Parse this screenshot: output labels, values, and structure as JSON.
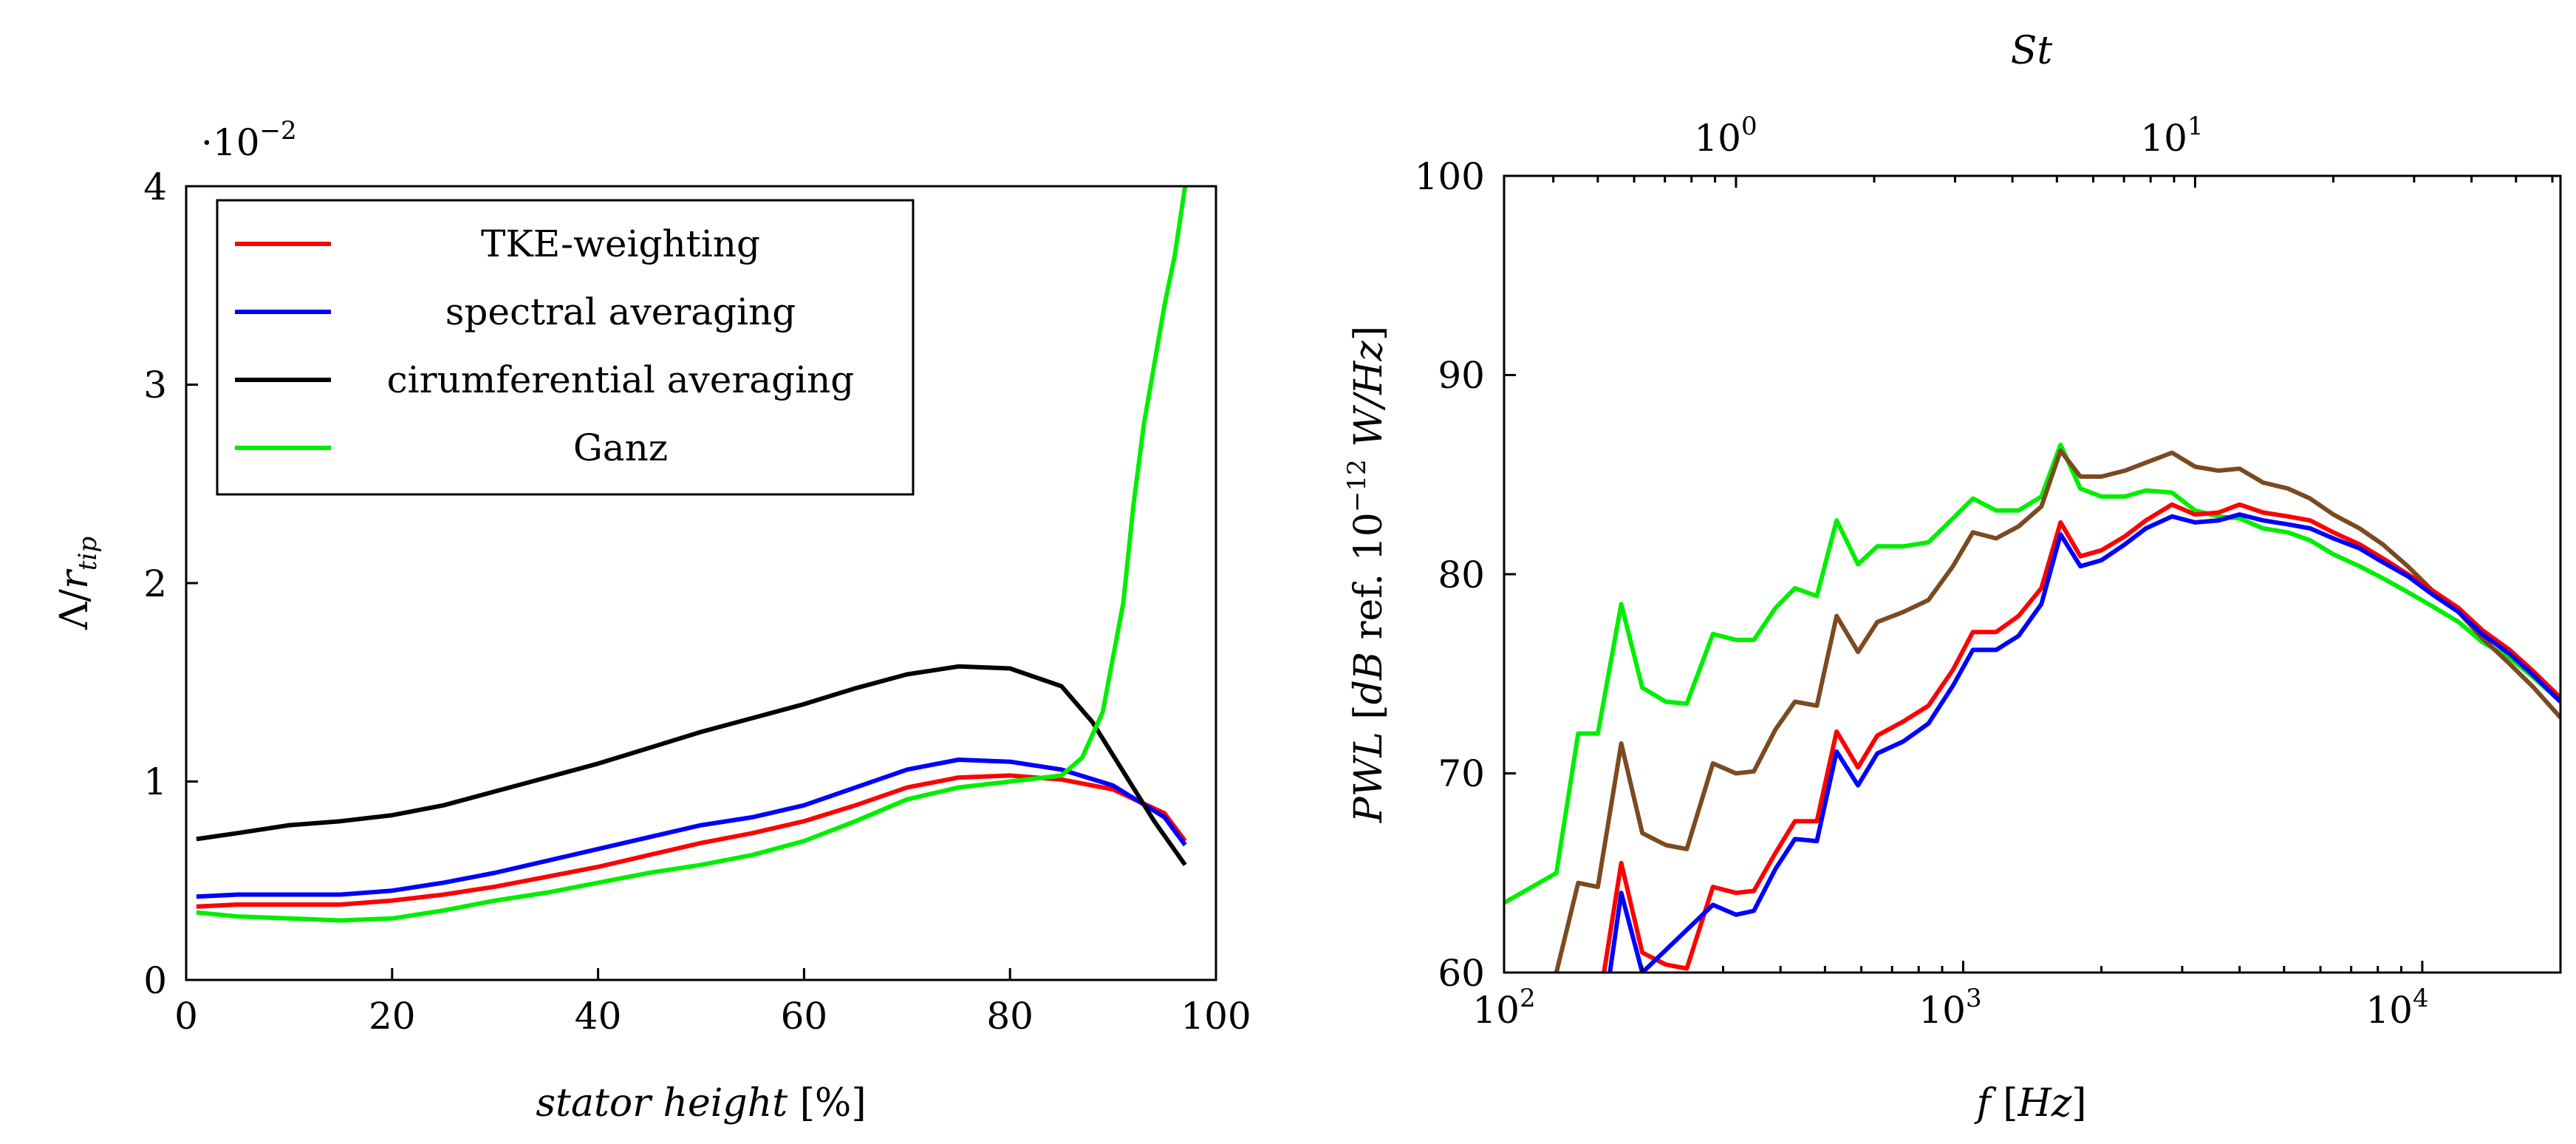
{
  "chart_data": [
    {
      "type": "line",
      "xlabel_parts": [
        "stator height",
        "[%]"
      ],
      "ylabel_parts": [
        "Λ/",
        "r",
        "tip"
      ],
      "y_multiplier": "·10",
      "y_multiplier_exp": "−2",
      "xlim": [
        0,
        100
      ],
      "ylim": [
        0,
        4
      ],
      "xticks": [
        0,
        20,
        40,
        60,
        80,
        100
      ],
      "xtick_labels": [
        "0",
        "20",
        "40",
        "60",
        "80",
        "100"
      ],
      "yticks": [
        0,
        1,
        2,
        3,
        4
      ],
      "ytick_labels": [
        "0",
        "1",
        "2",
        "3",
        "4"
      ],
      "grid": false,
      "legend_position": "top-left",
      "series": [
        {
          "name": "TKE-weighting",
          "color": "#ff0000",
          "x": [
            1,
            5,
            10,
            15,
            20,
            25,
            30,
            35,
            40,
            45,
            50,
            55,
            60,
            65,
            70,
            75,
            80,
            85,
            90,
            95,
            97
          ],
          "y": [
            0.37,
            0.38,
            0.38,
            0.38,
            0.4,
            0.43,
            0.47,
            0.52,
            0.57,
            0.63,
            0.69,
            0.74,
            0.8,
            0.88,
            0.97,
            1.02,
            1.03,
            1.01,
            0.96,
            0.84,
            0.7
          ]
        },
        {
          "name": "spectral averaging",
          "color": "#0000ff",
          "x": [
            1,
            5,
            10,
            15,
            20,
            25,
            30,
            35,
            40,
            45,
            50,
            55,
            60,
            65,
            70,
            75,
            80,
            85,
            90,
            95,
            97
          ],
          "y": [
            0.42,
            0.43,
            0.43,
            0.43,
            0.45,
            0.49,
            0.54,
            0.6,
            0.66,
            0.72,
            0.78,
            0.82,
            0.88,
            0.97,
            1.06,
            1.11,
            1.1,
            1.06,
            0.98,
            0.82,
            0.68
          ]
        },
        {
          "name": "cirumferential averaging",
          "color": "#000000",
          "x": [
            1,
            5,
            10,
            15,
            20,
            25,
            30,
            35,
            40,
            45,
            50,
            55,
            60,
            65,
            70,
            75,
            80,
            85,
            88,
            91,
            94,
            97
          ],
          "y": [
            0.71,
            0.74,
            0.78,
            0.8,
            0.83,
            0.88,
            0.95,
            1.02,
            1.09,
            1.17,
            1.25,
            1.32,
            1.39,
            1.47,
            1.54,
            1.58,
            1.57,
            1.48,
            1.3,
            1.05,
            0.8,
            0.58
          ]
        },
        {
          "name": "Ganz",
          "color": "#00ee00",
          "x": [
            1,
            5,
            10,
            15,
            20,
            25,
            30,
            35,
            40,
            45,
            50,
            55,
            60,
            65,
            70,
            75,
            80,
            85,
            87,
            89,
            91,
            92,
            93,
            94,
            95,
            96,
            97
          ],
          "y": [
            0.34,
            0.32,
            0.31,
            0.3,
            0.31,
            0.35,
            0.4,
            0.44,
            0.49,
            0.54,
            0.58,
            0.63,
            0.7,
            0.8,
            0.91,
            0.97,
            1.0,
            1.03,
            1.12,
            1.35,
            1.9,
            2.4,
            2.8,
            3.1,
            3.4,
            3.65,
            4.0
          ]
        }
      ]
    },
    {
      "type": "line",
      "xscale": "log",
      "xlabel_parts": [
        "f",
        "[",
        "Hz",
        "]"
      ],
      "ylabel_parts": [
        "PWL",
        "[",
        "dB",
        "ref. 10",
        "−12",
        "W/Hz",
        "]"
      ],
      "top_axis_label": "St",
      "xlim": [
        100,
        20000
      ],
      "ylim": [
        60,
        100
      ],
      "xtick_labels": [
        "10",
        "10",
        "10"
      ],
      "xtick_exps": [
        "2",
        "3",
        "4"
      ],
      "yticks": [
        60,
        70,
        80,
        90,
        100
      ],
      "ytick_labels": [
        "60",
        "70",
        "80",
        "90",
        "100"
      ],
      "top_ticks_f": [
        320,
        3200
      ],
      "top_tick_labels": [
        "10",
        "10"
      ],
      "top_tick_exps": [
        "0",
        "1"
      ],
      "grid": false,
      "series": [
        {
          "name": "green",
          "color": "#00ee00",
          "x": [
            100,
            130,
            145,
            160,
            180,
            200,
            225,
            250,
            285,
            320,
            350,
            390,
            430,
            480,
            530,
            590,
            650,
            740,
            840,
            950,
            1050,
            1180,
            1320,
            1480,
            1630,
            1800,
            2000,
            2250,
            2500,
            2850,
            3200,
            3600,
            4000,
            4500,
            5100,
            5700,
            6400,
            7300,
            8200,
            9300,
            10500,
            12000,
            13500,
            15500,
            17500,
            20000
          ],
          "y": [
            63.5,
            65,
            72,
            72,
            78.5,
            74.3,
            73.6,
            73.5,
            77,
            76.7,
            76.7,
            78.3,
            79.3,
            78.9,
            82.7,
            80.5,
            81.4,
            81.4,
            81.6,
            82.8,
            83.8,
            83.2,
            83.2,
            83.9,
            86.5,
            84.3,
            83.9,
            83.9,
            84.2,
            84.1,
            83.2,
            82.9,
            82.8,
            82.3,
            82.1,
            81.7,
            81.0,
            80.4,
            79.8,
            79.1,
            78.4,
            77.6,
            76.6,
            75.8,
            74.8,
            73.6
          ]
        },
        {
          "name": "brown",
          "color": "#7b4a1f",
          "x": [
            130,
            145,
            160,
            180,
            200,
            225,
            250,
            285,
            320,
            350,
            390,
            430,
            480,
            530,
            590,
            650,
            740,
            840,
            950,
            1050,
            1180,
            1320,
            1480,
            1630,
            1800,
            2000,
            2250,
            2500,
            2850,
            3200,
            3600,
            4000,
            4500,
            5100,
            5700,
            6400,
            7300,
            8200,
            9300,
            10500,
            12000,
            13500,
            15500,
            17500,
            20000
          ],
          "y": [
            60,
            64.5,
            64.3,
            71.5,
            67,
            66.4,
            66.2,
            70.5,
            70.0,
            70.1,
            72.2,
            73.6,
            73.4,
            77.9,
            76.1,
            77.6,
            78.1,
            78.7,
            80.4,
            82.1,
            81.8,
            82.4,
            83.4,
            86.2,
            84.9,
            84.9,
            85.2,
            85.6,
            86.1,
            85.4,
            85.2,
            85.3,
            84.6,
            84.3,
            83.8,
            83.0,
            82.3,
            81.5,
            80.4,
            79.2,
            78.1,
            76.8,
            75.5,
            74.3,
            72.8
          ]
        },
        {
          "name": "red",
          "color": "#ff0000",
          "x": [
            165,
            180,
            200,
            225,
            250,
            285,
            320,
            350,
            390,
            430,
            480,
            530,
            590,
            650,
            740,
            840,
            950,
            1050,
            1180,
            1320,
            1480,
            1630,
            1800,
            2000,
            2250,
            2500,
            2850,
            3200,
            3600,
            4000,
            4500,
            5100,
            5700,
            6400,
            7300,
            8200,
            9300,
            10500,
            12000,
            13500,
            15500,
            17500,
            20000
          ],
          "y": [
            60,
            65.5,
            61,
            60.4,
            60.2,
            64.3,
            64.0,
            64.1,
            66.0,
            67.6,
            67.6,
            72.1,
            70.3,
            71.9,
            72.6,
            73.4,
            75.2,
            77.1,
            77.1,
            77.9,
            79.3,
            82.6,
            80.9,
            81.2,
            81.9,
            82.7,
            83.5,
            83.0,
            83.1,
            83.5,
            83.1,
            82.9,
            82.7,
            82.1,
            81.5,
            80.8,
            80.0,
            79.2,
            78.3,
            77.2,
            76.2,
            75.1,
            73.8
          ]
        },
        {
          "name": "blue",
          "color": "#0000ff",
          "x": [
            170,
            180,
            200,
            285,
            320,
            350,
            390,
            430,
            480,
            530,
            590,
            650,
            740,
            840,
            950,
            1050,
            1180,
            1320,
            1480,
            1630,
            1800,
            2000,
            2250,
            2500,
            2850,
            3200,
            3600,
            4000,
            4500,
            5100,
            5700,
            6400,
            7300,
            8200,
            9300,
            10500,
            12000,
            13500,
            15500,
            17500,
            20000
          ],
          "y": [
            60,
            64,
            60,
            63.4,
            62.9,
            63.1,
            65.2,
            66.7,
            66.6,
            71.1,
            69.4,
            71.0,
            71.6,
            72.5,
            74.4,
            76.2,
            76.2,
            76.9,
            78.5,
            82.0,
            80.4,
            80.7,
            81.5,
            82.3,
            82.9,
            82.6,
            82.7,
            83.0,
            82.7,
            82.5,
            82.3,
            81.8,
            81.3,
            80.6,
            79.9,
            79.0,
            78.1,
            77.0,
            76.0,
            74.9,
            73.6
          ]
        }
      ]
    }
  ]
}
